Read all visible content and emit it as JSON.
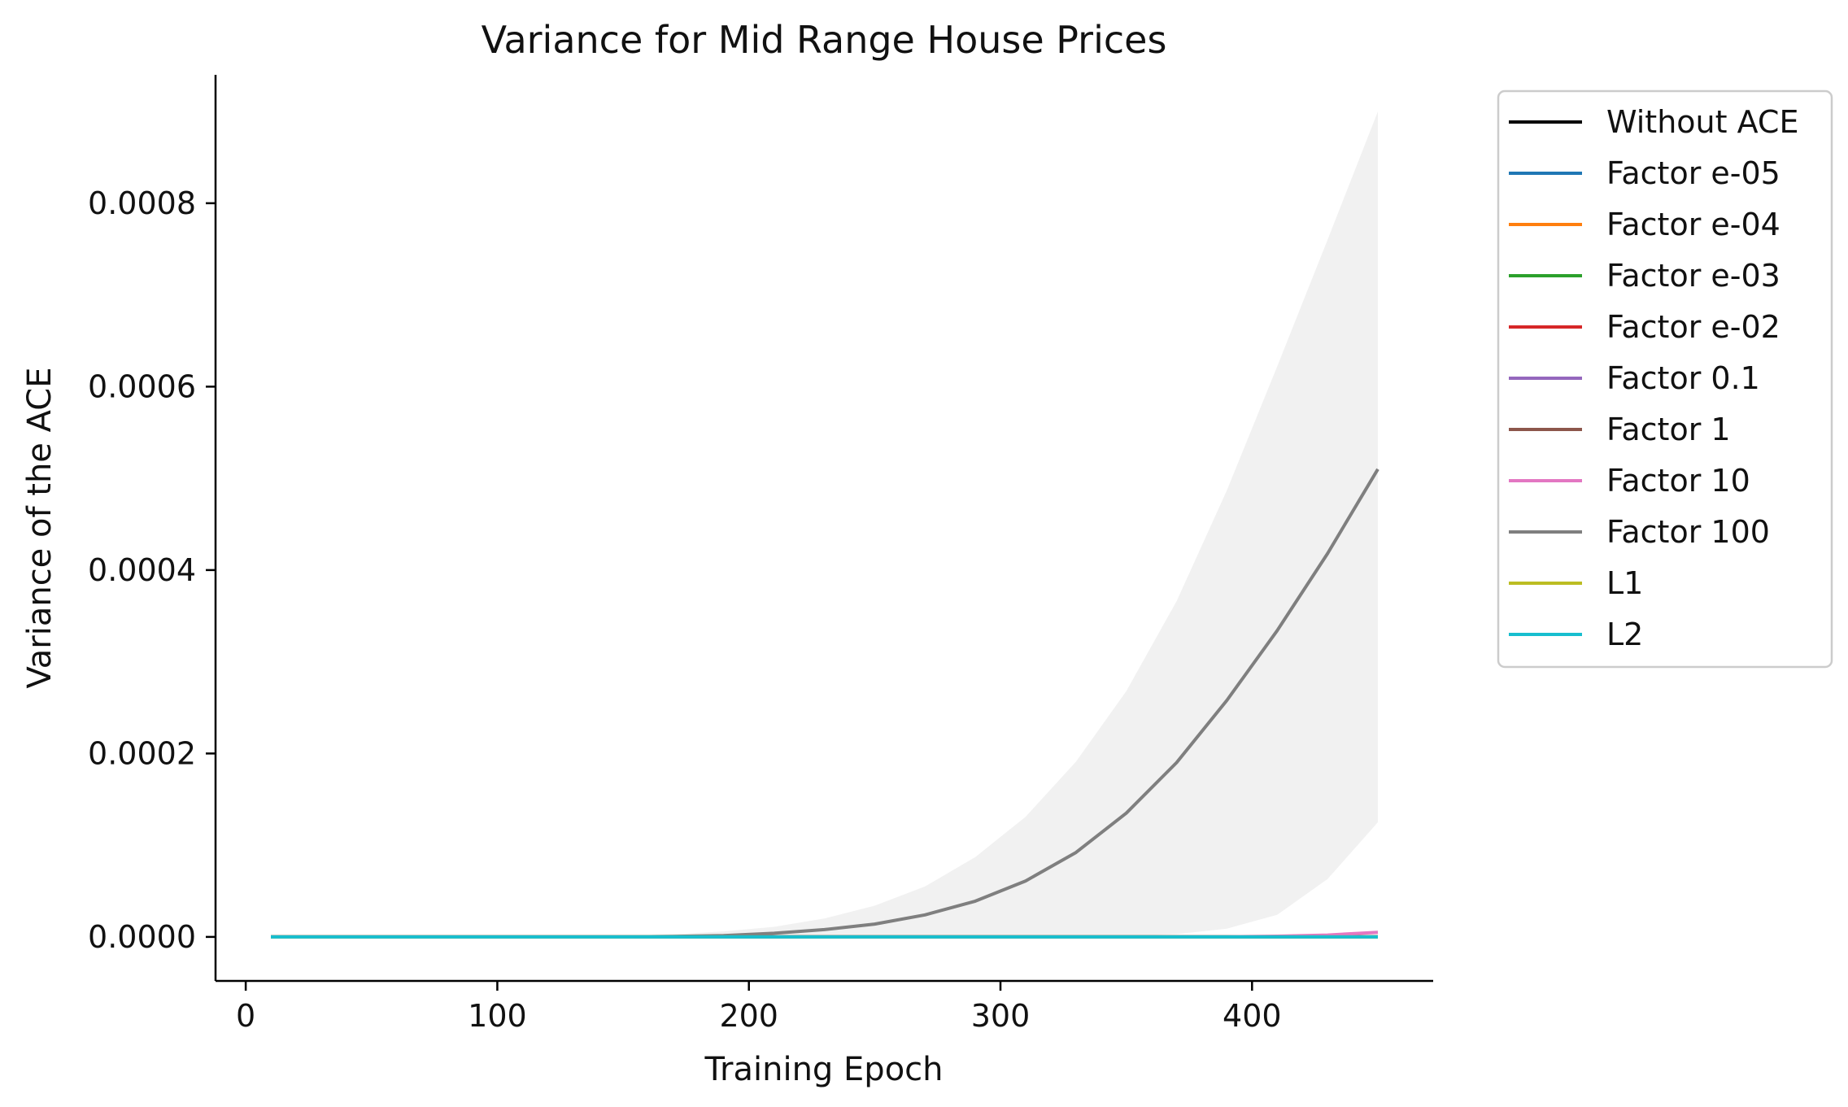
{
  "chart_data": {
    "type": "line",
    "title": "Variance for Mid Range House Prices",
    "xlabel": "Training Epoch",
    "ylabel": "Variance of the ACE",
    "xlim": [
      -12,
      472
    ],
    "ylim": [
      -4.8e-05,
      0.00094
    ],
    "xticks": [
      0,
      100,
      200,
      300,
      400
    ],
    "xtick_labels": [
      "0",
      "100",
      "200",
      "300",
      "400"
    ],
    "yticks": [
      0,
      0.0002,
      0.0004,
      0.0006,
      0.0008
    ],
    "ytick_labels": [
      "0.0000",
      "0.0002",
      "0.0004",
      "0.0006",
      "0.0008"
    ],
    "grid": false,
    "legend_position": "outside-right-top",
    "x": [
      10,
      30,
      50,
      70,
      90,
      110,
      130,
      150,
      170,
      190,
      210,
      230,
      250,
      270,
      290,
      310,
      330,
      350,
      370,
      390,
      410,
      430,
      450
    ],
    "series": [
      {
        "name": "Without ACE",
        "color": "#000000",
        "values": [
          0,
          0,
          0,
          0,
          0,
          0,
          0,
          0,
          0,
          0,
          0,
          0,
          0,
          0,
          0,
          0,
          0,
          0,
          0,
          0,
          0,
          0,
          0
        ]
      },
      {
        "name": "Factor e-05",
        "color": "#1f77b4",
        "values": [
          0,
          0,
          0,
          0,
          0,
          0,
          0,
          0,
          0,
          0,
          0,
          0,
          0,
          0,
          0,
          0,
          0,
          0,
          0,
          0,
          0,
          0,
          0
        ]
      },
      {
        "name": "Factor e-04",
        "color": "#ff7f0e",
        "values": [
          0,
          0,
          0,
          0,
          0,
          0,
          0,
          0,
          0,
          0,
          0,
          0,
          0,
          0,
          0,
          0,
          0,
          0,
          0,
          0,
          0,
          0,
          0
        ]
      },
      {
        "name": "Factor e-03",
        "color": "#2ca02c",
        "values": [
          0,
          0,
          0,
          0,
          0,
          0,
          0,
          0,
          0,
          0,
          0,
          0,
          0,
          0,
          0,
          0,
          0,
          0,
          0,
          0,
          0,
          0,
          0
        ]
      },
      {
        "name": "Factor e-02",
        "color": "#d62728",
        "values": [
          0,
          0,
          0,
          0,
          0,
          0,
          0,
          0,
          0,
          0,
          0,
          0,
          0,
          0,
          0,
          0,
          0,
          0,
          0,
          0,
          0,
          0,
          0
        ]
      },
      {
        "name": "Factor 0.1",
        "color": "#9467bd",
        "values": [
          0,
          0,
          0,
          0,
          0,
          0,
          0,
          0,
          0,
          0,
          0,
          0,
          0,
          0,
          0,
          0,
          0,
          0,
          0,
          0,
          0,
          0,
          0
        ]
      },
      {
        "name": "Factor 1",
        "color": "#8c564b",
        "values": [
          0,
          0,
          0,
          0,
          0,
          0,
          0,
          0,
          0,
          0,
          0,
          0,
          0,
          0,
          0,
          0,
          0,
          0,
          0,
          0,
          0,
          0,
          0
        ]
      },
      {
        "name": "Factor 10",
        "color": "#e377c2",
        "values": [
          0,
          0,
          0,
          0,
          0,
          0,
          0,
          0,
          0,
          0,
          0,
          0,
          0,
          0,
          0,
          0,
          0,
          0,
          0,
          2e-07,
          8e-07,
          2e-06,
          5e-06
        ]
      },
      {
        "name": "Factor 100",
        "color": "#7f7f7f",
        "values": [
          0,
          0,
          0,
          0,
          0,
          0,
          0,
          1e-07,
          5e-07,
          1.5e-06,
          4e-06,
          8e-06,
          1.4e-05,
          2.4e-05,
          3.9e-05,
          6.1e-05,
          9.2e-05,
          0.000135,
          0.00019,
          0.000258,
          0.000334,
          0.000418,
          0.00051
        ],
        "band_upper": [
          0,
          0,
          0,
          0,
          0,
          1e-07,
          5e-07,
          1e-06,
          3e-06,
          6e-06,
          1.1e-05,
          2e-05,
          3.4e-05,
          5.5e-05,
          8.7e-05,
          0.000131,
          0.000191,
          0.000268,
          0.000366,
          0.000487,
          0.000622,
          0.00076,
          0.0009
        ],
        "band_lower": [
          0,
          0,
          0,
          0,
          0,
          0,
          0,
          0,
          0,
          0,
          0,
          0,
          0,
          0,
          0,
          0,
          5e-07,
          1e-06,
          3e-06,
          9e-06,
          2.4e-05,
          6.3e-05,
          0.000125
        ]
      },
      {
        "name": "L1",
        "color": "#bcbd22",
        "values": [
          0,
          0,
          0,
          0,
          0,
          0,
          0,
          0,
          0,
          0,
          0,
          0,
          0,
          0,
          0,
          0,
          0,
          0,
          0,
          0,
          0,
          0,
          0
        ]
      },
      {
        "name": "L2",
        "color": "#17becf",
        "values": [
          0,
          0,
          0,
          0,
          0,
          0,
          0,
          0,
          0,
          0,
          0,
          0,
          0,
          0,
          0,
          0,
          0,
          0,
          0,
          0,
          0,
          0,
          0
        ]
      }
    ]
  }
}
